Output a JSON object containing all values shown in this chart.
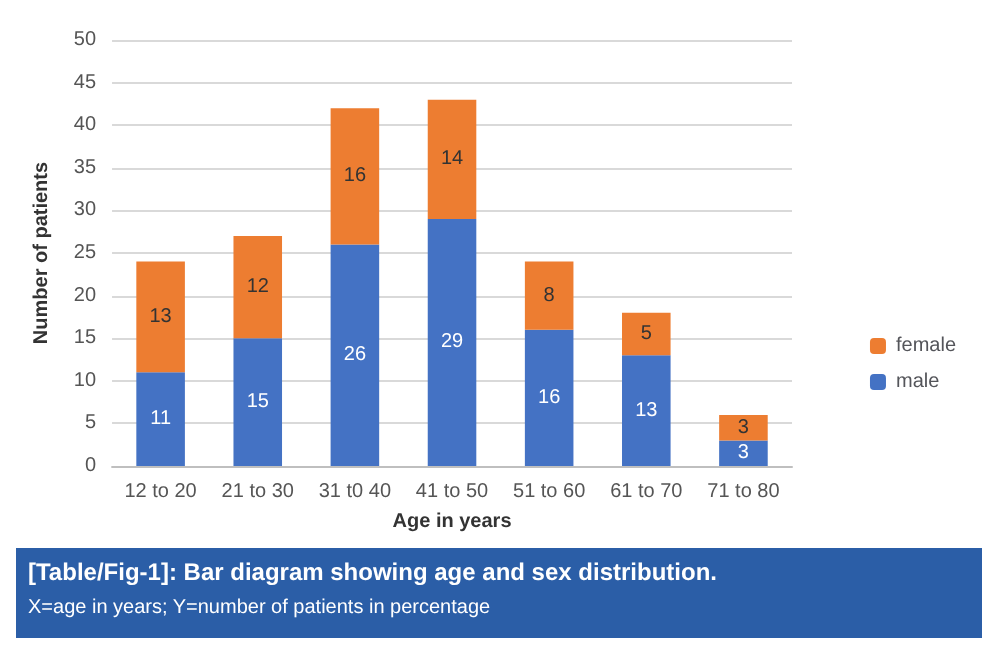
{
  "chart_data": {
    "type": "bar",
    "stacked": true,
    "xlabel": "Age in years",
    "ylabel": "Number of patients",
    "categories": [
      "12 to 20",
      "21 to 30",
      "31 t0 40",
      "41 to 50",
      "51 to 60",
      "61 to 70",
      "71 to 80"
    ],
    "series": [
      {
        "name": "male",
        "color": "#4472c4",
        "values": [
          11,
          15,
          26,
          29,
          16,
          13,
          3
        ]
      },
      {
        "name": "female",
        "color": "#ed7d31",
        "values": [
          13,
          12,
          16,
          14,
          8,
          5,
          3
        ]
      }
    ],
    "ylim": [
      0,
      50
    ],
    "yticks": [
      0,
      5,
      10,
      15,
      20,
      25,
      30,
      35,
      40,
      45,
      50
    ],
    "grid": "y",
    "legend": "right",
    "data_labels": true,
    "annotations": [
      "[Table/Fig-1]: Bar diagram showing age and sex distribution.",
      "X=age in years; Y=number of patients in percentage"
    ]
  }
}
